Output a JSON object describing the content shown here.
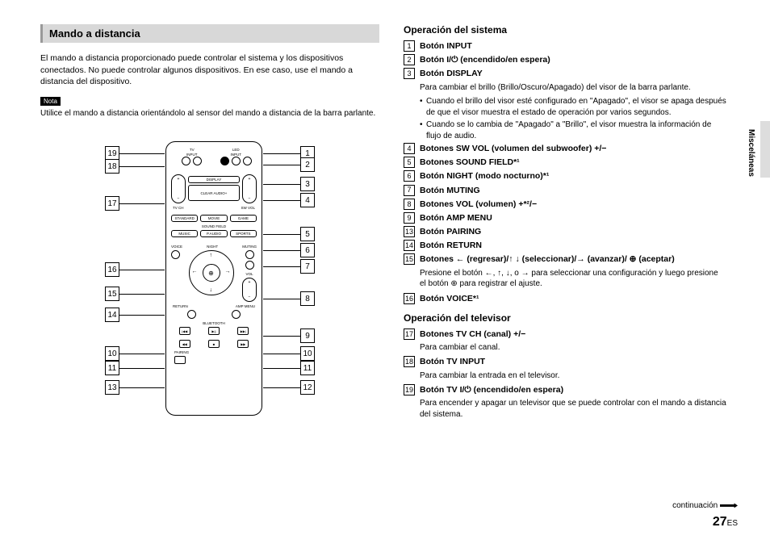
{
  "left": {
    "header": "Mando a distancia",
    "intro": "El mando a distancia proporcionado puede controlar el sistema y los dispositivos conectados. No puede controlar algunos dispositivos. En ese caso, use el mando a distancia del dispositivo.",
    "nota_label": "Nota",
    "nota_text": "Utilice el mando a distancia orientándolo al sensor del mando a distancia de la barra parlante."
  },
  "callouts_left": [
    "19",
    "18",
    "17",
    "16",
    "15",
    "14",
    "10",
    "11",
    "13"
  ],
  "callouts_right": [
    "1",
    "2",
    "3",
    "4",
    "5",
    "6",
    "7",
    "8",
    "9",
    "10",
    "11",
    "12"
  ],
  "right": {
    "sec1_title": "Operación del sistema",
    "items1": [
      {
        "n": "1",
        "l": "Botón INPUT"
      },
      {
        "n": "2",
        "l": "Botón I/⏻ (encendido/en espera)"
      },
      {
        "n": "3",
        "l": "Botón DISPLAY"
      }
    ],
    "desc3": "Para cambiar el brillo (Brillo/Oscuro/Apagado) del visor de la barra parlante.",
    "bul3a": "Cuando el brillo del visor esté configurado en \"Apagado\", el visor se apaga después de que el visor muestra el estado de operación por varios segundos.",
    "bul3b": "Cuando se lo cambia de \"Apagado\" a \"Brillo\", el visor muestra la información de flujo de audio.",
    "items2": [
      {
        "n": "4",
        "l": "Botones SW VOL (volumen del subwoofer) +/−"
      },
      {
        "n": "5",
        "l": "Botones SOUND FIELD*¹"
      },
      {
        "n": "6",
        "l": "Botón NIGHT (modo nocturno)*¹"
      },
      {
        "n": "7",
        "l": "Botón MUTING"
      },
      {
        "n": "8",
        "l": "Botones VOL (volumen) +*²/−"
      },
      {
        "n": "9",
        "l": "Botón AMP MENU"
      },
      {
        "n": "13",
        "l": "Botón PAIRING"
      },
      {
        "n": "14",
        "l": "Botón RETURN"
      },
      {
        "n": "15",
        "l": "Botones ← (regresar)/↑ ↓ (seleccionar)/→ (avanzar)/ ⊕ (aceptar)"
      }
    ],
    "desc15": "Presione el botón ←, ↑, ↓, o → para seleccionar una configuración y luego presione el botón ⊕ para registrar el ajuste.",
    "item16": {
      "n": "16",
      "l": "Botón VOICE*¹"
    },
    "sec2_title": "Operación del televisor",
    "item17": {
      "n": "17",
      "l": "Botones TV CH (canal) +/−"
    },
    "desc17": "Para cambiar el canal.",
    "item18": {
      "n": "18",
      "l": "Botón TV INPUT"
    },
    "desc18": "Para cambiar la entrada en el televisor.",
    "item19": {
      "n": "19",
      "l": "Botón TV I/⏻ (encendido/en espera)"
    },
    "desc19": "Para encender y apagar un televisor que se puede controlar con el mando a distancia del sistema."
  },
  "side_label": "Misceláneas",
  "continuation": "continuación",
  "page_num": "27",
  "page_suffix": "ES",
  "remote": {
    "top_labels": [
      "TV",
      "INPUT",
      "LED",
      "INPUT"
    ],
    "display": "DISPLAY",
    "clear": "CLEAR AUDIO+",
    "tvch": "TV CH",
    "swvol": "SW VOL",
    "sf": [
      "STANDARD",
      "MOVIE",
      "GAME"
    ],
    "sf_label": "SOUND FIELD",
    "sf2": [
      "MUSIC",
      "P.AUDIO",
      "SPORTS"
    ],
    "voice": "VOICE",
    "night": "NIGHT",
    "muting": "MUTING",
    "vol": "VOL",
    "return": "RETURN",
    "amp": "AMP MENU",
    "bt": "BLUETOOTH",
    "pairing": "PAIRING"
  }
}
